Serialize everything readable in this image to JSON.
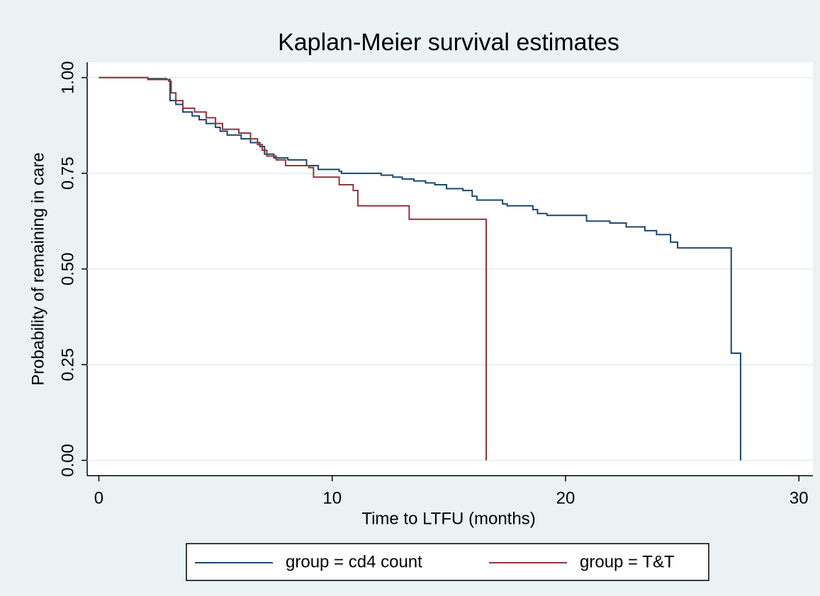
{
  "chart_data": {
    "type": "step",
    "title": "Kaplan-Meier survival estimates",
    "x_label": "Time to LTFU (months)",
    "y_label": "Probability of remaining in care",
    "xlim": [
      -0.5,
      30.6
    ],
    "ylim": [
      -0.04,
      1.04
    ],
    "xticks": [
      0,
      10,
      20,
      30
    ],
    "yticks": [
      {
        "value": 0,
        "label": "0.00"
      },
      0.25,
      {
        "value": 0.5,
        "label": "0.50"
      },
      0.75,
      {
        "value": 1,
        "label": "1.00"
      }
    ],
    "grid": true,
    "legend": "bottom",
    "series": [
      {
        "name": "group = cd4 count",
        "color": "#1a476f",
        "x": [
          0,
          2.1,
          2.9,
          3.05,
          3.3,
          3.6,
          4,
          4.3,
          4.6,
          5,
          5.2,
          5.5,
          6.1,
          6.5,
          6.9,
          7.1,
          7.5,
          8.1,
          8.9,
          9.4,
          10.3,
          10.4,
          12.1,
          12.6,
          13,
          13.5,
          14,
          14.4,
          14.9,
          15.6,
          16,
          16.2,
          17.3,
          17.5,
          18.6,
          18.8,
          19.2,
          20.9,
          21.9,
          22.6,
          23.4,
          23.9,
          24.5,
          24.8,
          27.1,
          27.5
        ],
        "values": [
          1,
          0.997,
          0.995,
          0.94,
          0.93,
          0.91,
          0.9,
          0.89,
          0.88,
          0.87,
          0.86,
          0.85,
          0.84,
          0.83,
          0.82,
          0.8,
          0.79,
          0.785,
          0.77,
          0.76,
          0.755,
          0.75,
          0.745,
          0.74,
          0.735,
          0.73,
          0.725,
          0.72,
          0.71,
          0.705,
          0.69,
          0.68,
          0.67,
          0.665,
          0.655,
          0.645,
          0.64,
          0.625,
          0.62,
          0.61,
          0.6,
          0.59,
          0.57,
          0.555,
          0.28,
          0
        ]
      },
      {
        "name": "group = T&T",
        "color": "#90353b",
        "x": [
          0,
          2.1,
          3.0,
          3.1,
          3.3,
          3.6,
          4.1,
          4.6,
          5,
          5.3,
          6,
          6.5,
          6.8,
          7,
          7.2,
          7.6,
          8,
          9,
          9.2,
          10.3,
          10.9,
          11.1,
          13.3,
          16.6
        ],
        "values": [
          1,
          0.995,
          0.99,
          0.96,
          0.94,
          0.92,
          0.91,
          0.895,
          0.88,
          0.865,
          0.855,
          0.84,
          0.825,
          0.81,
          0.795,
          0.785,
          0.77,
          0.765,
          0.74,
          0.72,
          0.705,
          0.665,
          0.63,
          0
        ]
      }
    ]
  }
}
